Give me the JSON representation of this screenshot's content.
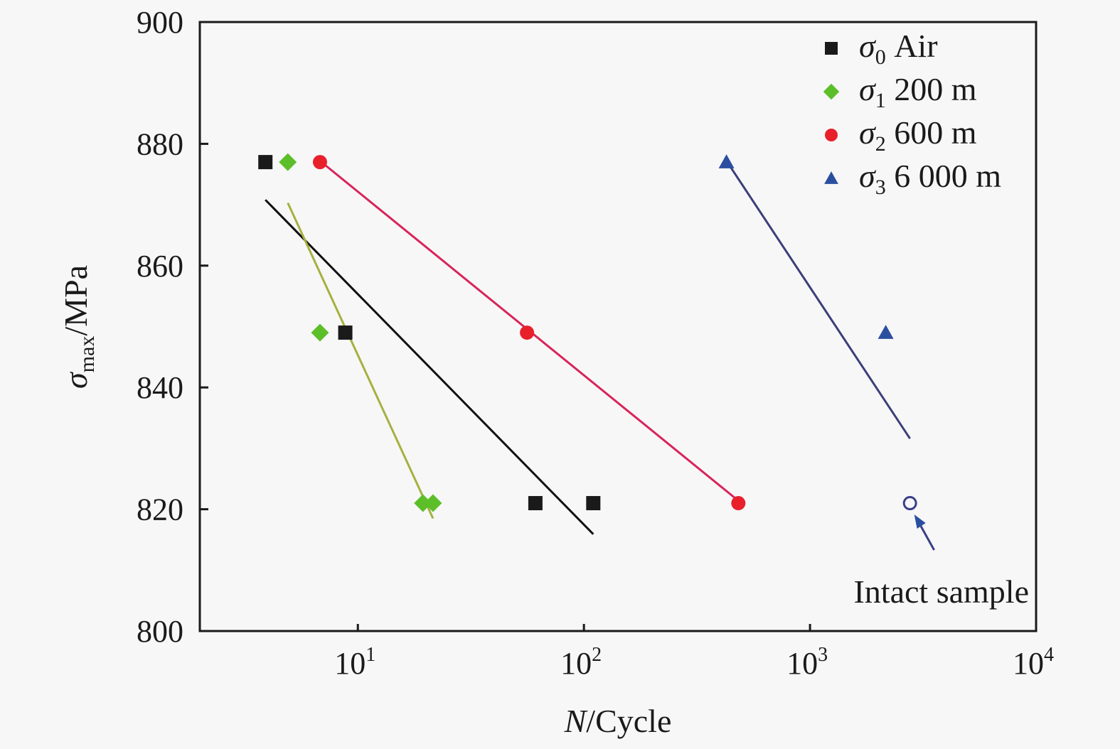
{
  "chart_data": {
    "type": "scatter",
    "title": "",
    "xlabel": {
      "italic": "N",
      "rest": "/Cycle"
    },
    "ylabel": {
      "symbol": "σ",
      "subscript": "max",
      "rest": "/MPa"
    },
    "xscale": "log",
    "xlim": [
      2,
      10000
    ],
    "ylim": [
      800,
      900
    ],
    "xticks": [
      {
        "value": 10,
        "base": "10",
        "exp": "1"
      },
      {
        "value": 100,
        "base": "10",
        "exp": "2"
      },
      {
        "value": 1000,
        "base": "10",
        "exp": "3"
      },
      {
        "value": 10000,
        "base": "10",
        "exp": "4"
      }
    ],
    "yticks": [
      800,
      820,
      840,
      860,
      880,
      900
    ],
    "grid": false,
    "legend_position": "top-right",
    "series": [
      {
        "name": "σ0 Air",
        "symbol": "σ",
        "sub": "0",
        "label": "Air",
        "marker": "square",
        "color": "#1a1a1a",
        "line_color": "#111111",
        "points": [
          [
            3.9,
            877
          ],
          [
            8.8,
            849
          ],
          [
            61,
            821
          ],
          [
            110,
            821
          ]
        ],
        "fit": [
          [
            3.9,
            870.8
          ],
          [
            110,
            815.9
          ]
        ]
      },
      {
        "name": "σ1 200 m",
        "symbol": "σ",
        "sub": "1",
        "label": "200 m",
        "marker": "diamond",
        "color": "#5cbf2a",
        "line_color": "#a6b040",
        "points": [
          [
            4.9,
            877
          ],
          [
            6.8,
            849
          ],
          [
            19.4,
            821
          ],
          [
            21.5,
            821
          ]
        ],
        "fit": [
          [
            4.9,
            870.3
          ],
          [
            21.5,
            818.5
          ]
        ]
      },
      {
        "name": "σ2 600 m",
        "symbol": "σ",
        "sub": "2",
        "label": "600 m",
        "marker": "circle",
        "color": "#e8202a",
        "line_color": "#d8245a",
        "points": [
          [
            6.8,
            877
          ],
          [
            56,
            849
          ],
          [
            482,
            821
          ]
        ],
        "fit": [
          [
            6.8,
            877.2
          ],
          [
            482,
            821.4
          ]
        ]
      },
      {
        "name": "σ3 6 000 m",
        "symbol": "σ",
        "sub": "3",
        "label": "6 000 m",
        "marker": "triangle",
        "color": "#2b4fa0",
        "line_color": "#3a3f7a",
        "points": [
          [
            427,
            877
          ],
          [
            2163,
            849
          ]
        ],
        "fit": [
          [
            427,
            877.2
          ],
          [
            2768,
            831.6
          ]
        ]
      }
    ],
    "annotations": [
      {
        "text": "Intact sample",
        "point": [
          2768,
          821
        ],
        "marker": "hollow-circle",
        "color": "#3a3f8a",
        "arrow": true
      }
    ]
  }
}
